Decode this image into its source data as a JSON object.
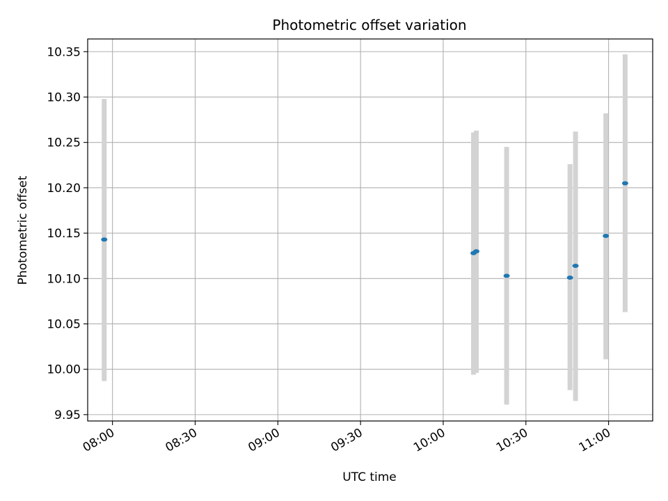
{
  "chart_data": {
    "type": "scatter",
    "title": "Photometric offset variation",
    "xlabel": "UTC time",
    "ylabel": "Photometric offset",
    "grid": true,
    "xlim": [
      "07:51",
      "11:16"
    ],
    "ylim": [
      9.943,
      10.364
    ],
    "x_ticks": [
      "08:00",
      "08:30",
      "09:00",
      "09:30",
      "10:00",
      "10:30",
      "11:00"
    ],
    "y_ticks": [
      "9.95",
      "10.00",
      "10.05",
      "10.10",
      "10.15",
      "10.20",
      "10.25",
      "10.30",
      "10.35"
    ],
    "colors": {
      "point": "#1f77b4",
      "errorbar": "#d3d3d3",
      "grid": "#b0b0b0"
    },
    "points": [
      {
        "x": "07:57",
        "y": 10.143,
        "err_low": 9.987,
        "err_high": 10.298
      },
      {
        "x": "10:11",
        "y": 10.128,
        "err_low": 9.994,
        "err_high": 10.261
      },
      {
        "x": "10:12",
        "y": 10.13,
        "err_low": 9.996,
        "err_high": 10.263
      },
      {
        "x": "10:23",
        "y": 10.103,
        "err_low": 9.961,
        "err_high": 10.245
      },
      {
        "x": "10:46",
        "y": 10.101,
        "err_low": 9.977,
        "err_high": 10.226
      },
      {
        "x": "10:48",
        "y": 10.114,
        "err_low": 9.965,
        "err_high": 10.262
      },
      {
        "x": "10:59",
        "y": 10.147,
        "err_low": 10.011,
        "err_high": 10.282
      },
      {
        "x": "11:06",
        "y": 10.205,
        "err_low": 10.063,
        "err_high": 10.347
      }
    ]
  }
}
